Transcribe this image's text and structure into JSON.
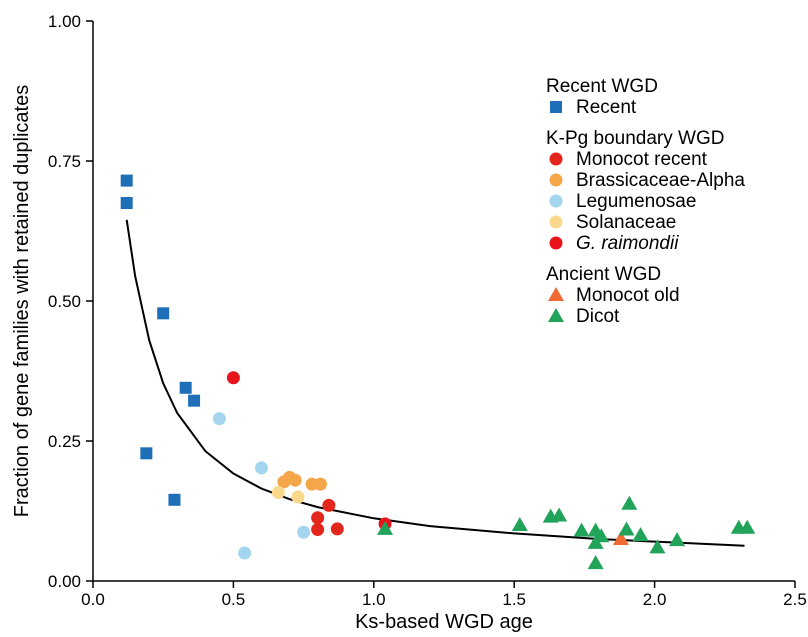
{
  "chart_data": {
    "type": "scatter",
    "xlabel": "Ks-based WGD age",
    "ylabel": "Fraction of gene families with retained duplicates",
    "xlim": [
      0,
      2.5
    ],
    "ylim": [
      0,
      1.0
    ],
    "x_ticks": [
      0,
      0.5,
      1.0,
      1.5,
      2.0,
      2.5
    ],
    "x_tick_labels": [
      "0.0",
      "0.5",
      "1.0",
      "1.5",
      "2.0",
      "2.5"
    ],
    "y_ticks": [
      0,
      0.25,
      0.5,
      0.75,
      1.0
    ],
    "y_tick_labels": [
      "0.00",
      "0.25",
      "0.50",
      "0.75",
      "1.00"
    ],
    "grid": false,
    "legend_placement": "top-right",
    "legend_groups": [
      {
        "title": "Recent WGD",
        "series": [
          "Recent"
        ]
      },
      {
        "title": "K-Pg boundary WGD",
        "series": [
          "Monocot recent",
          "Brassicaceae-Alpha",
          "Legumenosae",
          "Solanaceae",
          "G. raimondii"
        ]
      },
      {
        "title": "Ancient WGD",
        "series": [
          "Monocot old",
          "Dicot"
        ]
      }
    ],
    "series": [
      {
        "name": "Recent",
        "marker": "square",
        "color": "#1f6fb8",
        "x": [
          0.12,
          0.12,
          0.25,
          0.33,
          0.36,
          0.19,
          0.29
        ],
        "y": [
          0.715,
          0.675,
          0.478,
          0.345,
          0.322,
          0.228,
          0.145
        ]
      },
      {
        "name": "Monocot recent",
        "marker": "circle",
        "color": "#e2261c",
        "x": [
          0.8,
          0.84,
          0.8,
          0.87
        ],
        "y": [
          0.113,
          0.135,
          0.092,
          0.093
        ]
      },
      {
        "name": "Brassicaceae-Alpha",
        "marker": "circle",
        "color": "#f5a54a",
        "x": [
          0.68,
          0.7,
          0.72,
          0.78,
          0.81
        ],
        "y": [
          0.177,
          0.185,
          0.18,
          0.173,
          0.173
        ]
      },
      {
        "name": "Legumenosae",
        "marker": "circle",
        "color": "#a3d6ee",
        "x": [
          0.45,
          0.6,
          0.54,
          0.75
        ],
        "y": [
          0.29,
          0.202,
          0.05,
          0.087
        ]
      },
      {
        "name": "Solanaceae",
        "marker": "circle",
        "color": "#fbd98c",
        "x": [
          0.66,
          0.73
        ],
        "y": [
          0.158,
          0.15
        ]
      },
      {
        "name": "G. raimondii",
        "marker": "circle",
        "color": "#e8161c",
        "x": [
          0.5,
          1.04
        ],
        "y": [
          0.363,
          0.102
        ]
      },
      {
        "name": "Monocot old",
        "marker": "triangle",
        "color": "#f06a35",
        "x": [
          1.88
        ],
        "y": [
          0.075
        ]
      },
      {
        "name": "Dicot",
        "marker": "triangle",
        "color": "#21a35a",
        "x": [
          1.04,
          1.52,
          1.63,
          1.66,
          1.74,
          1.79,
          1.81,
          1.79,
          1.79,
          1.9,
          1.91,
          1.95,
          2.01,
          2.08,
          2.3,
          2.33
        ],
        "y": [
          0.093,
          0.1,
          0.115,
          0.117,
          0.09,
          0.09,
          0.08,
          0.068,
          0.032,
          0.092,
          0.138,
          0.082,
          0.06,
          0.073,
          0.095,
          0.095
        ]
      }
    ],
    "fit_curve": {
      "x": [
        0.12,
        0.15,
        0.2,
        0.25,
        0.3,
        0.4,
        0.5,
        0.6,
        0.7,
        0.8,
        1.0,
        1.2,
        1.5,
        1.8,
        2.1,
        2.32
      ],
      "y": [
        0.645,
        0.545,
        0.43,
        0.353,
        0.3,
        0.232,
        0.192,
        0.165,
        0.146,
        0.132,
        0.112,
        0.098,
        0.085,
        0.075,
        0.068,
        0.063
      ]
    }
  }
}
